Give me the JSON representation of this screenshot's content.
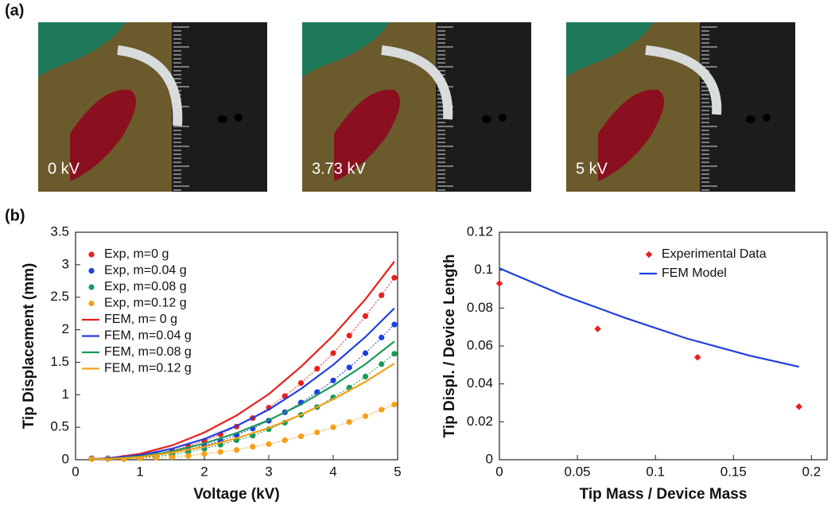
{
  "figure": {
    "panel_labels": [
      "(a)",
      "(b)"
    ],
    "photos": [
      {
        "label": "0 kV"
      },
      {
        "label": "3.73 kV"
      },
      {
        "label": "5 kV"
      }
    ]
  },
  "chart_data": [
    {
      "type": "line",
      "xlabel": "Voltage (kV)",
      "ylabel": "Tip Displacement (mm)",
      "xlim": [
        0,
        5
      ],
      "xticks": [
        0,
        1,
        2,
        3,
        4,
        5
      ],
      "ylim": [
        0,
        3.5
      ],
      "yticks": [
        0,
        0.5,
        1,
        1.5,
        2,
        2.5,
        3,
        3.5
      ],
      "legend": "upper left",
      "series": [
        {
          "name": "Exp, m=0 g",
          "color": "#e8201e",
          "style": "markers",
          "x": [
            0.25,
            0.5,
            0.75,
            1,
            1.25,
            1.5,
            1.75,
            2,
            2.25,
            2.5,
            2.75,
            3,
            3.25,
            3.5,
            3.75,
            4,
            4.25,
            4.5,
            4.75,
            4.95
          ],
          "values": [
            0.02,
            0.02,
            0.03,
            0.05,
            0.09,
            0.14,
            0.21,
            0.29,
            0.39,
            0.51,
            0.64,
            0.8,
            0.98,
            1.18,
            1.4,
            1.64,
            1.91,
            2.21,
            2.53,
            2.8
          ]
        },
        {
          "name": "Exp, m=0.04 g",
          "color": "#1f3fe0",
          "style": "markers",
          "x": [
            0.25,
            0.5,
            0.75,
            1,
            1.25,
            1.5,
            1.75,
            2,
            2.25,
            2.5,
            2.75,
            3,
            3.25,
            3.5,
            3.75,
            4,
            4.25,
            4.5,
            4.75,
            4.95
          ],
          "values": [
            0.02,
            0.02,
            0.02,
            0.04,
            0.07,
            0.11,
            0.15,
            0.22,
            0.29,
            0.38,
            0.48,
            0.6,
            0.73,
            0.88,
            1.04,
            1.22,
            1.42,
            1.64,
            1.88,
            2.08
          ]
        },
        {
          "name": "Exp, m=0.08 g",
          "color": "#1b9a5a",
          "style": "markers",
          "x": [
            0.25,
            0.5,
            0.75,
            1,
            1.25,
            1.5,
            1.75,
            2,
            2.25,
            2.5,
            2.75,
            3,
            3.25,
            3.5,
            3.75,
            4,
            4.25,
            4.5,
            4.75,
            4.95
          ],
          "values": [
            0.01,
            0.01,
            0.01,
            0.03,
            0.05,
            0.08,
            0.12,
            0.17,
            0.23,
            0.3,
            0.37,
            0.47,
            0.57,
            0.69,
            0.81,
            0.96,
            1.11,
            1.28,
            1.47,
            1.63
          ]
        },
        {
          "name": "Exp, m=0.12 g",
          "color": "#f5a01a",
          "style": "markers",
          "x": [
            0.25,
            0.5,
            0.75,
            1,
            1.25,
            1.5,
            1.75,
            2,
            2.25,
            2.5,
            2.75,
            3,
            3.25,
            3.5,
            3.75,
            4,
            4.25,
            4.5,
            4.75,
            4.95
          ],
          "values": [
            0.01,
            0.01,
            0.01,
            0.02,
            0.03,
            0.04,
            0.06,
            0.09,
            0.12,
            0.15,
            0.2,
            0.24,
            0.3,
            0.36,
            0.42,
            0.5,
            0.58,
            0.67,
            0.77,
            0.85
          ]
        },
        {
          "name": "FEM, m= 0 g",
          "color": "#e8201e",
          "style": "line",
          "x": [
            0.25,
            0.5,
            1,
            1.5,
            2,
            2.5,
            3,
            3.5,
            4,
            4.5,
            4.95
          ],
          "values": [
            0.01,
            0.02,
            0.09,
            0.22,
            0.42,
            0.68,
            1.01,
            1.43,
            1.91,
            2.47,
            3.05
          ]
        },
        {
          "name": "FEM, m=0.04 g",
          "color": "#1f3fe0",
          "style": "line",
          "x": [
            0.25,
            0.5,
            1,
            1.5,
            2,
            2.5,
            3,
            3.5,
            4,
            4.5,
            4.95
          ],
          "values": [
            0.01,
            0.02,
            0.07,
            0.17,
            0.32,
            0.52,
            0.77,
            1.09,
            1.46,
            1.89,
            2.33
          ]
        },
        {
          "name": "FEM, m=0.08 g",
          "color": "#1b9a5a",
          "style": "line",
          "x": [
            0.25,
            0.5,
            1,
            1.5,
            2,
            2.5,
            3,
            3.5,
            4,
            4.5,
            4.95
          ],
          "values": [
            0.01,
            0.01,
            0.05,
            0.13,
            0.25,
            0.41,
            0.61,
            0.85,
            1.14,
            1.47,
            1.82
          ]
        },
        {
          "name": "FEM, m=0.12 g",
          "color": "#f5a01a",
          "style": "line",
          "x": [
            0.25,
            0.5,
            1,
            1.5,
            2,
            2.5,
            3,
            3.5,
            4,
            4.5,
            4.95
          ],
          "values": [
            0.01,
            0.01,
            0.04,
            0.11,
            0.2,
            0.33,
            0.49,
            0.69,
            0.93,
            1.2,
            1.48
          ]
        }
      ]
    },
    {
      "type": "scatter",
      "xlabel": "Tip Mass / Device Mass",
      "ylabel": "Tip Displ. / Device Length",
      "xlim": [
        0,
        0.21
      ],
      "xticks": [
        0,
        0.05,
        0.1,
        0.15,
        0.2
      ],
      "ylim": [
        0,
        0.12
      ],
      "yticks": [
        0,
        0.02,
        0.04,
        0.06,
        0.08,
        0.1,
        0.12
      ],
      "legend": "upper right",
      "series": [
        {
          "name": "Experimental Data",
          "color": "#e8201e",
          "style": "markers",
          "x": [
            0,
            0.063,
            0.127,
            0.192
          ],
          "values": [
            0.093,
            0.069,
            0.054,
            0.028
          ]
        },
        {
          "name": "FEM Model",
          "color": "#1f3fe0",
          "style": "line",
          "x": [
            0,
            0.04,
            0.08,
            0.12,
            0.16,
            0.192
          ],
          "values": [
            0.101,
            0.087,
            0.075,
            0.064,
            0.055,
            0.049
          ]
        }
      ]
    }
  ]
}
